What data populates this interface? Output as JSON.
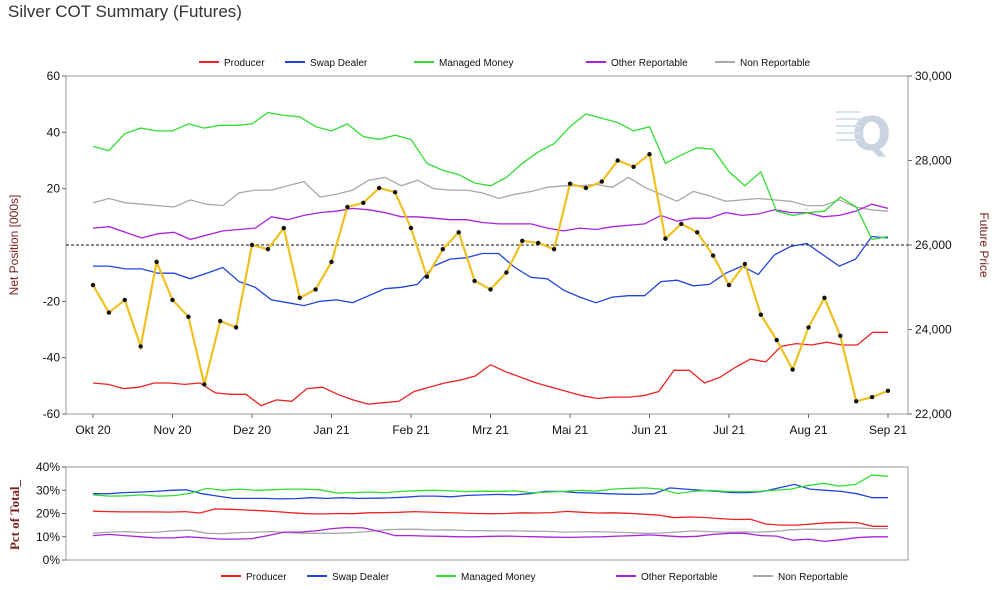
{
  "title": "Silver COT Summary (Futures)",
  "legend": [
    {
      "name": "Producer",
      "color": "#ee2222"
    },
    {
      "name": "Swap Dealer",
      "color": "#2244dd"
    },
    {
      "name": "Managed Money",
      "color": "#33dd33"
    },
    {
      "name": "Other Reportable",
      "color": "#aa22dd"
    },
    {
      "name": "Non Reportable",
      "color": "#a8a8a8"
    }
  ],
  "price_color": "#f0c020",
  "chart_data": [
    {
      "type": "line",
      "xlabel": "",
      "ylabel": "Net Position [000s]",
      "y2label": "Future Price",
      "x_ticks": [
        "Okt 20",
        "Nov 20",
        "Dez 20",
        "Jan 21",
        "Feb 21",
        "Mrz 21",
        "Mai 21",
        "Jun 21",
        "Jul 21",
        "Aug 21",
        "Sep 21"
      ],
      "ylim": [
        -60,
        60
      ],
      "y_ticks": [
        "60",
        "40",
        "20",
        "-20",
        "-40",
        "-60"
      ],
      "y2lim": [
        22000,
        30000
      ],
      "y2_ticks": [
        "30,000",
        "28,000",
        "26,000",
        "24,000",
        "22,000"
      ],
      "zero_line": "dashed",
      "grid": false,
      "legend_position": "top",
      "series": [
        {
          "name": "Producer",
          "color": "#ee2222",
          "values": [
            -49,
            -49.5,
            -51,
            -50.5,
            -49,
            -49,
            -49.5,
            -49,
            -52.5,
            -53,
            -53,
            -57,
            -55,
            -55.5,
            -51,
            -50.5,
            -53,
            -55,
            -56.5,
            -56,
            -55.5,
            -52,
            -50.5,
            -49,
            -48,
            -46.5,
            -42.5,
            -45,
            -47,
            -49,
            -50.5,
            -52,
            -53.5,
            -54.5,
            -54,
            -54,
            -53.5,
            -52,
            -44.5,
            -44.5,
            -49,
            -47,
            -43.5,
            -40.5,
            -41.5,
            -36,
            -35,
            -35.5,
            -34.5,
            -35.5,
            -35.5,
            -31,
            -31
          ]
        },
        {
          "name": "Swap Dealer",
          "color": "#2244dd",
          "values": [
            -7.5,
            -7.5,
            -8.5,
            -8.5,
            -10,
            -10,
            -12,
            -10,
            -8,
            -13,
            -15,
            -19.5,
            -20.5,
            -21.5,
            -20,
            -19.5,
            -20.5,
            -18,
            -15.5,
            -15,
            -14,
            -7.5,
            -5,
            -4.5,
            -3,
            -3,
            -8,
            -11.5,
            -12,
            -16,
            -18.5,
            -20.5,
            -18.5,
            -18,
            -18,
            -13,
            -12.5,
            -14.5,
            -14,
            -10,
            -7.5,
            -10.5,
            -3.5,
            -0.5,
            0.5,
            -3.5,
            -7.5,
            -5,
            3,
            2.5
          ]
        },
        {
          "name": "Managed Money",
          "color": "#33dd33",
          "values": [
            35,
            33.5,
            39.5,
            41.5,
            40.5,
            40.5,
            43,
            41.5,
            42.5,
            42.5,
            43,
            47,
            46,
            45.5,
            42,
            40.5,
            43,
            38.5,
            37.5,
            39,
            37.5,
            29,
            26.5,
            25,
            22,
            21,
            24,
            29,
            33,
            36,
            42,
            46.5,
            45,
            43.5,
            40.5,
            42,
            29,
            32,
            34.5,
            34,
            26,
            21,
            26,
            12,
            10.5,
            11.5,
            12,
            17,
            13.5,
            2,
            3
          ]
        },
        {
          "name": "Other Reportable",
          "color": "#aa22dd",
          "values": [
            6,
            6.5,
            4.5,
            2.5,
            4,
            4.5,
            2,
            3.5,
            5,
            5.5,
            6,
            10,
            9,
            10.5,
            11.5,
            12,
            13,
            12.5,
            11.5,
            10,
            10,
            9.5,
            9,
            9,
            8,
            7.5,
            7.5,
            7.5,
            6,
            5,
            6,
            5.5,
            6.5,
            7,
            7.5,
            10.5,
            8.5,
            9.5,
            9.5,
            11.5,
            10.5,
            11,
            12.5,
            11.5,
            11.5,
            10,
            10.5,
            12,
            14.5,
            13
          ]
        },
        {
          "name": "Non Reportable",
          "color": "#a8a8a8",
          "values": [
            15,
            16.5,
            15,
            14.5,
            14,
            13.5,
            16,
            14.5,
            14,
            18.5,
            19.5,
            19.5,
            21,
            22.5,
            17,
            18,
            19.5,
            23,
            24,
            21,
            23,
            20,
            19.5,
            19.5,
            18.5,
            16.5,
            18,
            19,
            20.5,
            21,
            21,
            21.5,
            20.5,
            24,
            20.5,
            18,
            15.5,
            19,
            17.5,
            15.5,
            16,
            16.5,
            16,
            15.5,
            14,
            14,
            16,
            13.5,
            12.5,
            12
          ]
        },
        {
          "name": "Future Price",
          "axis": "right",
          "color": "#f0c020",
          "values": [
            25.05,
            24.4,
            24.7,
            23.6,
            25.6,
            24.7,
            24.3,
            22.7,
            24.2,
            24.05,
            26.0,
            25.9,
            26.4,
            24.75,
            24.95,
            25.6,
            26.9,
            27.0,
            27.35,
            27.25,
            26.4,
            25.25,
            25.9,
            26.3,
            25.15,
            24.95,
            25.35,
            26.1,
            26.05,
            25.9,
            27.45,
            27.35,
            27.5,
            28.0,
            27.85,
            28.15,
            26.15,
            26.5,
            26.3,
            25.75,
            25.05,
            25.55,
            24.35,
            23.75,
            23.05,
            24.05,
            24.75,
            23.85,
            22.3,
            22.4,
            22.55
          ]
        }
      ]
    },
    {
      "type": "line",
      "xlabel": "",
      "ylabel": "Pct of Total_",
      "ylim": [
        0,
        40
      ],
      "y_ticks": [
        "40%",
        "30%",
        "20%",
        "10%",
        "0%"
      ],
      "grid": false,
      "legend_position": "bottom",
      "series": [
        {
          "name": "Producer",
          "color": "#ee2222",
          "values": [
            21,
            20.8,
            20.7,
            20.7,
            20.7,
            20.6,
            20.8,
            20.2,
            22,
            21.8,
            21.5,
            21.2,
            20.8,
            20.3,
            19.9,
            19.8,
            20,
            19.9,
            20.3,
            20.4,
            20.5,
            20.8,
            20.6,
            20.4,
            20.2,
            20,
            19.9,
            20,
            20.3,
            20.2,
            20.4,
            20.9,
            20.5,
            20.2,
            20.3,
            20.1,
            19.7,
            19.3,
            18.2,
            18.5,
            18.3,
            17.8,
            17.4,
            17.5,
            15.5,
            15,
            15,
            15.5,
            16,
            16.2,
            16.1,
            14.5,
            14.5
          ]
        },
        {
          "name": "Swap Dealer",
          "color": "#2244dd",
          "values": [
            28.5,
            28.5,
            29,
            29.2,
            29.5,
            30,
            30.2,
            28.5,
            27.5,
            26.5,
            26.5,
            26.5,
            26.3,
            26.4,
            26.8,
            26.5,
            26.8,
            26.5,
            26.6,
            26.7,
            27,
            27.5,
            27.5,
            27.2,
            27.8,
            28,
            28.2,
            28,
            28.5,
            29.5,
            29.5,
            29,
            28.8,
            28.5,
            28.3,
            28.2,
            28.5,
            31,
            30.5,
            30,
            29.5,
            29,
            29,
            29.5,
            31,
            32.5,
            30.5,
            30,
            29.5,
            28.5,
            26.8,
            26.8
          ]
        },
        {
          "name": "Managed Money",
          "color": "#33dd33",
          "values": [
            28,
            27.5,
            27.6,
            28,
            27.5,
            27.7,
            28.7,
            30.8,
            30,
            30.5,
            30,
            30.2,
            30.5,
            30.5,
            30.2,
            28.8,
            29,
            29.2,
            29,
            29.5,
            29.8,
            30,
            29.7,
            29.4,
            29.6,
            29.5,
            29.7,
            29,
            29.2,
            29.5,
            30,
            29.6,
            30.5,
            30.8,
            31,
            30.5,
            28.6,
            29.5,
            30,
            29.5,
            29.4,
            29.5,
            30,
            30.5,
            32,
            33,
            31.8,
            32.5,
            36.5,
            36
          ]
        },
        {
          "name": "Other Reportable",
          "color": "#aa22dd",
          "values": [
            10.5,
            11,
            10.5,
            10,
            9.5,
            9.5,
            10,
            9.5,
            9,
            9,
            9.2,
            10.5,
            12,
            12,
            12.5,
            13.5,
            14,
            13.8,
            12.3,
            10.5,
            10.5,
            10.3,
            10.2,
            10,
            10,
            10.2,
            10.3,
            10.1,
            10,
            9.8,
            9.7,
            9.9,
            10,
            10.3,
            10.5,
            10.8,
            10.4,
            10,
            10.2,
            11,
            11.5,
            11.5,
            10.5,
            10.3,
            8.5,
            9,
            8,
            8.7,
            9.6,
            10,
            10
          ]
        },
        {
          "name": "Non Reportable",
          "color": "#a8a8a8",
          "values": [
            11.5,
            12,
            12.2,
            11.8,
            12,
            12.6,
            12.8,
            11.5,
            11.3,
            11.8,
            12,
            12.2,
            11.8,
            11.5,
            11.5,
            11.5,
            11.8,
            12.2,
            13,
            13.2,
            13.2,
            12.9,
            13,
            12.7,
            12.6,
            12.5,
            12.5,
            12.4,
            12.3,
            12,
            12.1,
            12.2,
            12,
            11.8,
            11.5,
            11.6,
            12,
            12.5,
            12.2,
            12,
            12.1,
            12,
            12.3,
            13,
            13.3,
            13.2,
            13.4,
            13.8,
            13.5,
            13.5
          ]
        }
      ]
    }
  ]
}
